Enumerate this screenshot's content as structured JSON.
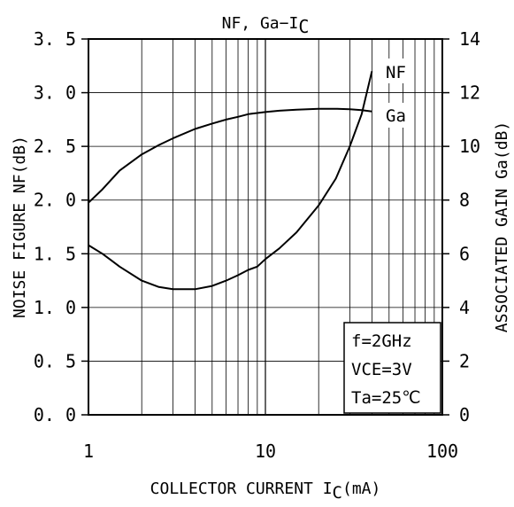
{
  "chart_data": {
    "type": "line",
    "title": "NF, Ga−I",
    "title_sub": "C",
    "xlabel": "COLLECTOR CURRENT  I",
    "xlabel_sub": "C",
    "xlabel_unit": "(mA)",
    "ylabel_left": "NOISE FIGURE NF(dB)",
    "ylabel_right": "ASSOCIATED GAIN Ga(dB)",
    "x_scale": "log",
    "xlim": [
      1,
      100
    ],
    "ylim_left": [
      0,
      3.5
    ],
    "ylim_right": [
      0,
      14
    ],
    "x_ticks": [
      "1",
      "10",
      "100"
    ],
    "y_left_ticks": [
      "0. 0",
      "0. 5",
      "1. 0",
      "1. 5",
      "2. 0",
      "2. 5",
      "3. 0",
      "3. 5"
    ],
    "y_right_ticks": [
      "0",
      "2",
      "4",
      "6",
      "8",
      "10",
      "12",
      "14"
    ],
    "grid": true,
    "conditions": [
      "f=2GHz",
      "VCE=3V",
      "Ta=25℃"
    ],
    "series": [
      {
        "name": "NF",
        "axis": "left",
        "x": [
          1,
          1.2,
          1.5,
          2,
          2.5,
          3,
          3.5,
          4,
          5,
          6,
          7,
          8,
          9,
          10,
          12,
          15,
          20,
          25,
          30,
          35,
          40
        ],
        "y": [
          1.58,
          1.5,
          1.38,
          1.25,
          1.19,
          1.17,
          1.17,
          1.17,
          1.2,
          1.25,
          1.3,
          1.35,
          1.38,
          1.45,
          1.55,
          1.7,
          1.95,
          2.2,
          2.5,
          2.8,
          3.2
        ]
      },
      {
        "name": "Ga",
        "axis": "right",
        "x": [
          1,
          1.2,
          1.5,
          2,
          2.5,
          3,
          4,
          5,
          6,
          7,
          8,
          10,
          12,
          15,
          20,
          25,
          30,
          35,
          40
        ],
        "y": [
          7.9,
          8.4,
          9.1,
          9.7,
          10.05,
          10.3,
          10.65,
          10.85,
          11.0,
          11.1,
          11.2,
          11.28,
          11.33,
          11.37,
          11.4,
          11.4,
          11.38,
          11.35,
          11.3
        ]
      }
    ]
  }
}
